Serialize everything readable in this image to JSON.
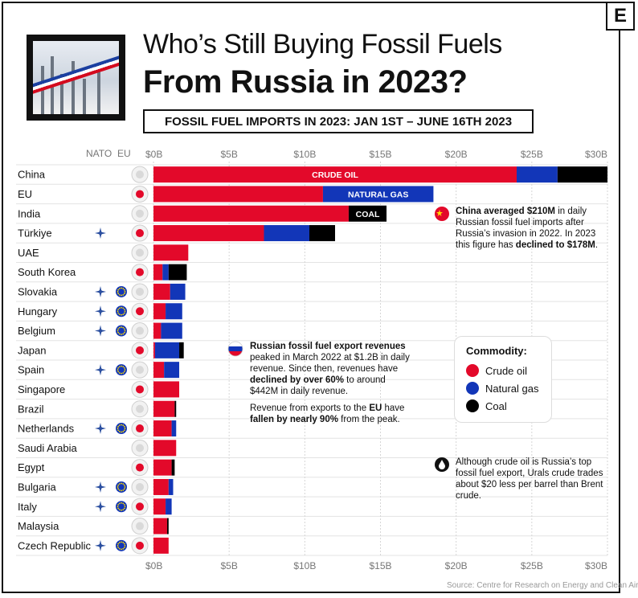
{
  "header": {
    "logo_letter": "E",
    "title_line1": "Who’s Still Buying Fossil Fuels",
    "title_line2": "From Russia in 2023?",
    "subtitle": "FOSSIL FUEL IMPORTS IN 2023: JAN 1ST – JUNE 16TH 2023"
  },
  "column_headers": {
    "nato": "NATO",
    "eu": "EU"
  },
  "colors": {
    "crude_oil": "#e3092a",
    "natural_gas": "#1236b8",
    "coal": "#000000"
  },
  "chart_data": {
    "type": "bar",
    "orientation": "horizontal",
    "stacked": true,
    "xlim": [
      0,
      30
    ],
    "x_unit": "$B",
    "x_tick_labels": [
      "$0B",
      "$5B",
      "$10B",
      "$15B",
      "$20B",
      "$25B",
      "$30B"
    ],
    "categories": [
      "China",
      "EU",
      "India",
      "Türkiye",
      "UAE",
      "South Korea",
      "Slovakia",
      "Hungary",
      "Belgium",
      "Japan",
      "Spain",
      "Singapore",
      "Brazil",
      "Netherlands",
      "Saudi Arabia",
      "Egypt",
      "Bulgaria",
      "Italy",
      "Malaysia",
      "Czech Republic"
    ],
    "nato": [
      false,
      false,
      false,
      true,
      false,
      false,
      true,
      true,
      true,
      false,
      true,
      false,
      false,
      true,
      false,
      false,
      true,
      true,
      false,
      true
    ],
    "eu": [
      false,
      false,
      false,
      false,
      false,
      false,
      true,
      true,
      true,
      false,
      true,
      false,
      false,
      true,
      false,
      false,
      true,
      true,
      false,
      true
    ],
    "series": [
      {
        "name": "Crude oil",
        "values": [
          24.0,
          11.2,
          12.9,
          7.3,
          2.3,
          0.6,
          1.1,
          0.8,
          0.5,
          0.1,
          0.7,
          1.7,
          1.4,
          1.2,
          1.5,
          1.2,
          1.0,
          0.8,
          0.9,
          1.0
        ]
      },
      {
        "name": "Natural gas",
        "values": [
          2.7,
          7.3,
          0.0,
          3.0,
          0.0,
          0.4,
          1.0,
          1.1,
          1.4,
          1.6,
          1.0,
          0.0,
          0.0,
          0.3,
          0.0,
          0.0,
          0.3,
          0.4,
          0.0,
          0.0
        ]
      },
      {
        "name": "Coal",
        "values": [
          3.3,
          0.0,
          2.5,
          1.7,
          0.0,
          1.2,
          0.0,
          0.0,
          0.0,
          0.3,
          0.0,
          0.0,
          0.1,
          0.0,
          0.0,
          0.2,
          0.0,
          0.0,
          0.1,
          0.0
        ]
      }
    ],
    "bar_labels": [
      {
        "row": 0,
        "series": 0,
        "text": "CRUDE OIL"
      },
      {
        "row": 1,
        "series": 1,
        "text": "NATURAL GAS"
      },
      {
        "row": 2,
        "series": 2,
        "text": "COAL"
      }
    ],
    "grid": true
  },
  "annotations": {
    "china": {
      "bold1": "China averaged $210M",
      "t1": " in daily Russian fossil fuel imports after Russia’s invasion in 2022. In 2023 this figure has ",
      "bold2": "declined to $178M",
      "t2": "."
    },
    "russia_p1": {
      "bold1": "Russian fossil fuel export revenues",
      "t1": " peaked in March 2022 at $1.2B in daily revenue. Since then, revenues have ",
      "bold2": "declined by over 60%",
      "t2": " to around $442M in daily revenue."
    },
    "russia_p2": {
      "t1": "Revenue from exports to the ",
      "bold1": "EU",
      "t2": " have ",
      "bold2": "fallen by nearly 90%",
      "t3": " from the peak."
    },
    "urals": "Although crude oil is Russia’s top fossil fuel export, Urals crude trades about $20 less per barrel than Brent crude."
  },
  "legend": {
    "title": "Commodity:",
    "items": [
      "Crude oil",
      "Natural gas",
      "Coal"
    ]
  },
  "source": "Source: Centre for Research on Energy and Clean Air"
}
